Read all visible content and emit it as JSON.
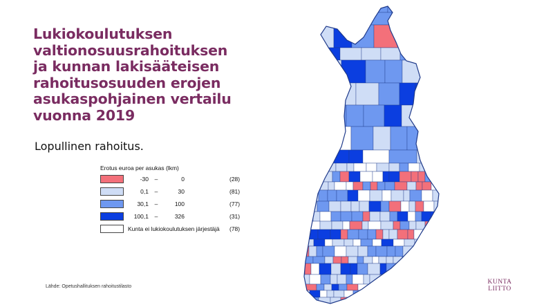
{
  "title_lines": [
    "Lukiokoulutuksen",
    "valtionosuusrahoituksen",
    "ja kunnan lakisääteisen",
    "rahoitusosuuden erojen",
    "asukaspohjainen vertailu",
    "vuonna 2019"
  ],
  "subtitle": "Lopullinen rahoitus.",
  "legend": {
    "title": "Erotus euroa per asukas (lkm)",
    "items": [
      {
        "from": "-30",
        "to": "0",
        "count": "(28)",
        "color": "#f3707a"
      },
      {
        "from": "0,1",
        "to": "30",
        "count": "(81)",
        "color": "#cfddf6"
      },
      {
        "from": "30,1",
        "to": "100",
        "count": "(77)",
        "color": "#6e98f0"
      },
      {
        "from": "100,1",
        "to": "326",
        "count": "(31)",
        "color": "#0b3ee0"
      }
    ],
    "no_provider": {
      "label": "Kunta ei lukiokoulutuksen järjestäjä",
      "count": "(78)",
      "color": "#ffffff"
    },
    "dash": "–"
  },
  "source": "Lähde: Opetushallituksen rahoitustilasto",
  "logo": {
    "line1": "KUNTA",
    "line2": "LIITTO",
    "color": "#7a2c61"
  },
  "map": {
    "subject": "Finland municipalities",
    "border_color": "#1f3a8a"
  }
}
